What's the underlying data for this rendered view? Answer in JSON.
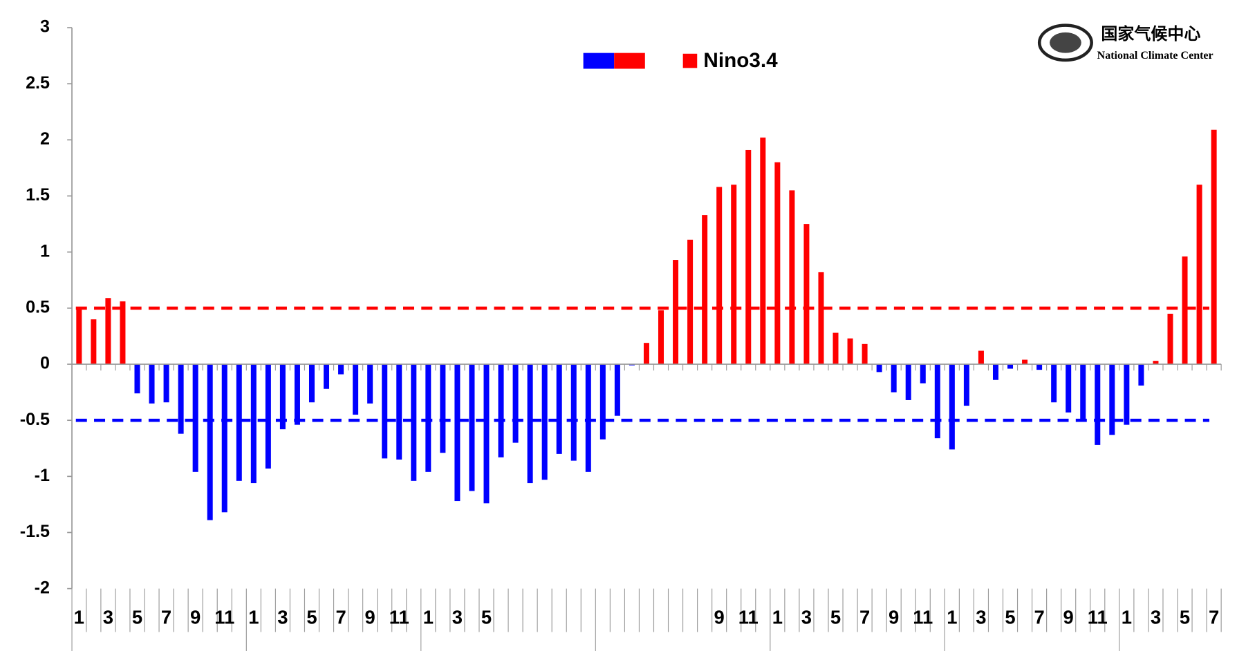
{
  "chart_data": {
    "type": "bar",
    "logo": {
      "name_cn": "国家气候中心",
      "name_en": "National Climate Center"
    },
    "series": [
      {
        "name": "Nino3.4",
        "positive_color": "#ff0000",
        "negative_color": "#0000ff",
        "values": [
          0.5,
          0.4,
          0.59,
          0.56,
          -0.26,
          -0.35,
          -0.34,
          -0.62,
          -0.96,
          -1.39,
          -1.32,
          -1.04,
          -1.06,
          -0.93,
          -0.58,
          -0.54,
          -0.34,
          -0.22,
          -0.09,
          -0.45,
          -0.35,
          -0.84,
          -0.85,
          -1.04,
          -0.96,
          -0.79,
          -1.22,
          -1.13,
          -1.24,
          -0.83,
          -0.7,
          -1.06,
          -1.03,
          -0.8,
          -0.86,
          -0.96,
          -0.67,
          -0.46,
          -0.01,
          0.19,
          0.48,
          0.93,
          1.11,
          1.33,
          1.58,
          1.6,
          1.91,
          2.02,
          1.8,
          1.55,
          1.25,
          0.82,
          0.28,
          0.23,
          0.18,
          -0.07,
          -0.25,
          -0.32,
          -0.17,
          -0.66,
          -0.76,
          -0.37,
          0.12,
          -0.14,
          -0.04,
          0.04,
          -0.05,
          -0.34,
          -0.43,
          -0.5,
          -0.72,
          -0.63,
          -0.54,
          -0.19,
          0.03,
          0.45,
          0.96,
          1.6,
          2.09
        ]
      }
    ],
    "categories": [
      "1",
      null,
      "3",
      null,
      "5",
      null,
      "7",
      null,
      "9",
      null,
      "11",
      null,
      "1",
      null,
      "3",
      null,
      "5",
      null,
      "7",
      null,
      "9",
      null,
      "11",
      null,
      "1",
      null,
      "3",
      null,
      "5",
      null,
      null,
      null,
      null,
      null,
      null,
      null,
      null,
      null,
      null,
      null,
      null,
      null,
      null,
      null,
      "9",
      null,
      "11",
      null,
      "1",
      null,
      "3",
      null,
      "5",
      null,
      "7",
      null,
      "9",
      null,
      "11",
      null,
      "1",
      null,
      "3",
      null,
      "5",
      null,
      "7",
      null,
      "9",
      null,
      "11",
      null,
      "1",
      null,
      "3",
      null,
      "5",
      null,
      "7"
    ],
    "ylim": [
      -2,
      3
    ],
    "yticks": [
      -2,
      -1.5,
      -1,
      -0.5,
      0,
      0.5,
      1,
      1.5,
      2,
      2.5,
      3
    ],
    "reference_lines": [
      {
        "value": 0.5,
        "color": "#ff0000"
      },
      {
        "value": -0.5,
        "color": "#0000ff"
      }
    ]
  }
}
